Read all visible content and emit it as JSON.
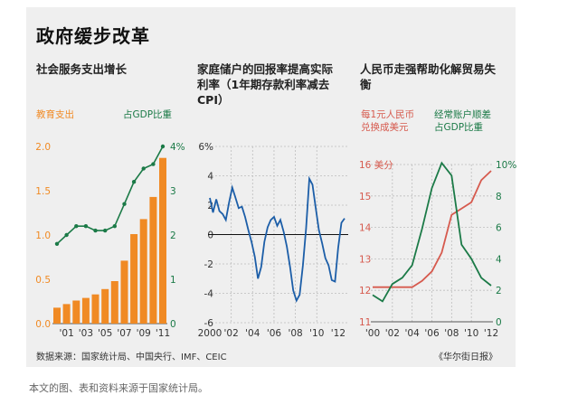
{
  "title": "政府缓步改革",
  "footer": "数据来源：国家统计局、中国央行、IMF、CEIC",
  "credit": "《华尔街日报》",
  "caption": "本文的图、表和资料来源于国家统计局。",
  "colors": {
    "orange": "#f08a24",
    "green": "#1b7a47",
    "blue": "#1c5ea8",
    "red": "#d65a4e",
    "background": "#efefef"
  },
  "chart_data": [
    {
      "type": "bar",
      "title": "社会服务支出增长",
      "x_tick_labels": [
        "'01",
        "'03",
        "'05",
        "'07",
        "'09",
        "'11"
      ],
      "series": [
        {
          "name": "教育支出",
          "type": "bar",
          "axis": "left",
          "color": "#f08a24",
          "x": [
            2000,
            2001,
            2002,
            2003,
            2004,
            2005,
            2006,
            2007,
            2008,
            2009,
            2010,
            2011
          ],
          "values": [
            0.18,
            0.22,
            0.26,
            0.29,
            0.33,
            0.39,
            0.48,
            0.71,
            1.01,
            1.18,
            1.43,
            1.87
          ]
        },
        {
          "name": "占GDP比重",
          "type": "line",
          "axis": "right",
          "color": "#1b7a47",
          "x": [
            2000,
            2001,
            2002,
            2003,
            2004,
            2005,
            2006,
            2007,
            2008,
            2009,
            2010,
            2011
          ],
          "values": [
            1.8,
            2.0,
            2.2,
            2.2,
            2.1,
            2.1,
            2.2,
            2.7,
            3.2,
            3.5,
            3.6,
            4.0
          ]
        }
      ],
      "left_axis": {
        "ticks": [
          "0.0",
          "0.5",
          "1.0",
          "1.5",
          "2.0"
        ],
        "ylim": [
          0,
          2
        ]
      },
      "right_axis": {
        "ticks": [
          "0",
          "1",
          "2",
          "3",
          "4%"
        ],
        "ylim": [
          0,
          4
        ]
      },
      "grid": false
    },
    {
      "type": "line",
      "title": "家庭储户的回报率提高实际利率（1年期存款利率减去CPI）",
      "x_tick_labels": [
        "2000",
        "'02",
        "'04",
        "'06",
        "'08",
        "'10",
        "'12"
      ],
      "left_axis": {
        "ticks": [
          "-6",
          "-4",
          "-2",
          "0",
          "2",
          "4",
          "6%"
        ],
        "ylim": [
          -6,
          6
        ]
      },
      "zero_line": true,
      "grid": true,
      "series": [
        {
          "name": "",
          "color": "#1c5ea8",
          "x": [
            2000.0,
            2000.3,
            2000.6,
            2000.9,
            2001.2,
            2001.5,
            2001.8,
            2002.1,
            2002.4,
            2002.7,
            2003.0,
            2003.3,
            2003.6,
            2003.9,
            2004.2,
            2004.5,
            2004.8,
            2005.1,
            2005.4,
            2005.7,
            2006.0,
            2006.3,
            2006.6,
            2006.9,
            2007.2,
            2007.5,
            2007.8,
            2008.1,
            2008.4,
            2008.7,
            2009.0,
            2009.3,
            2009.6,
            2009.9,
            2010.2,
            2010.5,
            2010.8,
            2011.1,
            2011.4,
            2011.7,
            2012.0,
            2012.3,
            2012.6
          ],
          "values": [
            2.5,
            1.5,
            2.4,
            1.6,
            1.4,
            1.0,
            2.2,
            3.2,
            2.5,
            1.8,
            1.9,
            1.2,
            0.3,
            -0.5,
            -1.5,
            -3.0,
            -2.2,
            -0.5,
            0.5,
            1.0,
            1.2,
            0.6,
            1.0,
            0.2,
            -0.8,
            -2.2,
            -3.8,
            -4.5,
            -4.1,
            -2.1,
            0.4,
            3.8,
            3.4,
            1.8,
            0.3,
            -0.6,
            -1.6,
            -2.1,
            -3.1,
            -3.2,
            -0.9,
            0.8,
            1.1
          ]
        }
      ]
    },
    {
      "type": "line",
      "title": "人民币走强帮助化解贸易失衡",
      "x_tick_labels": [
        "'00",
        "'02",
        "'04",
        "'06",
        "'08",
        "'10",
        "'12"
      ],
      "series": [
        {
          "name": "每1元人民币兑换成美元",
          "axis": "left",
          "color": "#d65a4e",
          "x": [
            2000,
            2001,
            2002,
            2003,
            2004,
            2005,
            2006,
            2007,
            2008,
            2009,
            2010,
            2011,
            2012
          ],
          "values": [
            12.1,
            12.1,
            12.1,
            12.1,
            12.1,
            12.3,
            12.6,
            13.2,
            14.4,
            14.6,
            14.8,
            15.5,
            15.8
          ]
        },
        {
          "name": "经常账户顺差占GDP比重",
          "axis": "right",
          "color": "#1b7a47",
          "x": [
            2000,
            2001,
            2002,
            2003,
            2004,
            2005,
            2006,
            2007,
            2008,
            2009,
            2010,
            2011,
            2012
          ],
          "values": [
            1.7,
            1.3,
            2.4,
            2.8,
            3.6,
            5.9,
            8.5,
            10.1,
            9.3,
            4.9,
            4.0,
            2.8,
            2.3
          ]
        }
      ],
      "left_axis": {
        "ticks": [
          "11",
          "12",
          "13",
          "14",
          "15",
          "16 美分"
        ],
        "ylim": [
          11,
          16
        ]
      },
      "right_axis": {
        "ticks": [
          "0",
          "2",
          "4",
          "6",
          "8",
          "10%"
        ],
        "ylim": [
          0,
          10
        ]
      },
      "grid": true
    }
  ]
}
